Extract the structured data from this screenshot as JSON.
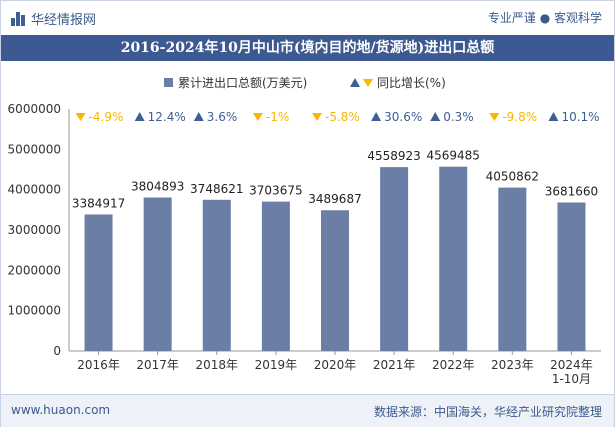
{
  "header": {
    "brand": "华经情报网",
    "tagline": "专业严谨 ● 客观科学"
  },
  "title": "2016-2024年10月中山市(境内目的地/货源地)进出口总额",
  "footer": {
    "website": "www.huaon.com",
    "source": "数据来源：中国海关，华经产业研究院整理"
  },
  "colors": {
    "bar": "#6b7fa6",
    "up": "#3f5f93",
    "down": "#f5b800",
    "axis_text": "#333333",
    "grid": "#e6e6e6"
  },
  "chart_data": {
    "type": "bar",
    "categories": [
      "2016年",
      "2017年",
      "2018年",
      "2019年",
      "2020年",
      "2021年",
      "2022年",
      "2023年",
      "2024年\n1-10月"
    ],
    "series": [
      {
        "name": "累计进出口总额(万美元)",
        "values": [
          3384917,
          3804893,
          3748621,
          3703675,
          3489687,
          4558923,
          4569485,
          4050862,
          3681660
        ]
      },
      {
        "name": "同比增长(%)",
        "values": [
          -4.9,
          12.4,
          3.6,
          -1,
          -5.8,
          30.6,
          0.3,
          -9.8,
          10.1
        ],
        "labels": [
          "-4.9%",
          "12.4%",
          "3.6%",
          "-1%",
          "-5.8%",
          "30.6%",
          "0.3%",
          "-9.8%",
          "10.1%"
        ]
      }
    ],
    "ylim": [
      0,
      6000000
    ],
    "yticks": [
      "0",
      "1000000",
      "2000000",
      "3000000",
      "4000000",
      "5000000",
      "6000000"
    ],
    "legend_position": "top-center",
    "grid": false
  }
}
